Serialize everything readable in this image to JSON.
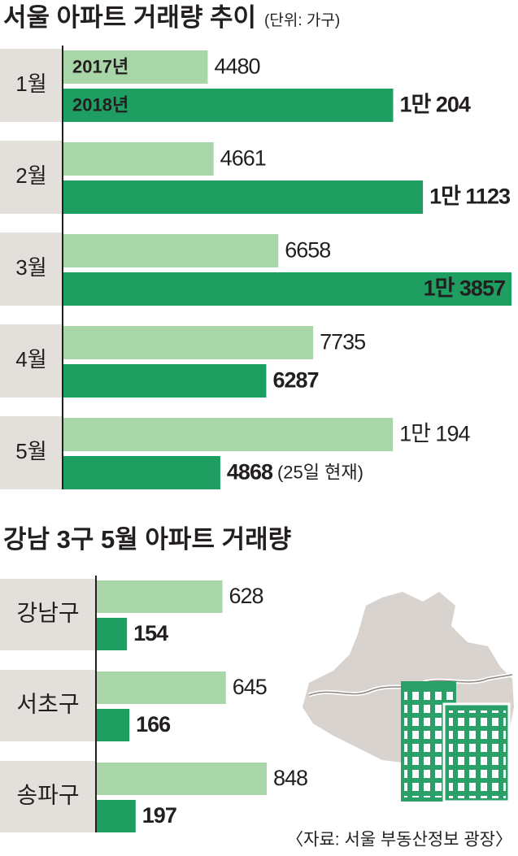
{
  "chart_data": [
    {
      "type": "bar",
      "title": "서울 아파트 거래량 추이",
      "subtitle": "(단위: 가구)",
      "categories": [
        "1월",
        "2월",
        "3월",
        "4월",
        "5월"
      ],
      "series": [
        {
          "name": "2017년",
          "color": "#a9d6a9",
          "values": [
            4480,
            4661,
            6658,
            7735,
            10194
          ],
          "value_labels": [
            "4480",
            "4661",
            "6658",
            "7735",
            "1만 194"
          ]
        },
        {
          "name": "2018년",
          "color": "#1f9e62",
          "values": [
            10204,
            11123,
            13857,
            6287,
            4868
          ],
          "value_labels": [
            "1만 204",
            "1만 1123",
            "1만 3857",
            "6287",
            "4868"
          ]
        }
      ],
      "annotation": "(25일 현재)"
    },
    {
      "type": "bar",
      "title": "강남 3구 5월 아파트 거래량",
      "categories": [
        "강남구",
        "서초구",
        "송파구"
      ],
      "series": [
        {
          "color": "#a9d6a9",
          "values": [
            628,
            645,
            848
          ]
        },
        {
          "color": "#1f9e62",
          "values": [
            154,
            166,
            197
          ]
        }
      ]
    }
  ],
  "source": "〈자료: 서울 부동산정보 광장〉"
}
